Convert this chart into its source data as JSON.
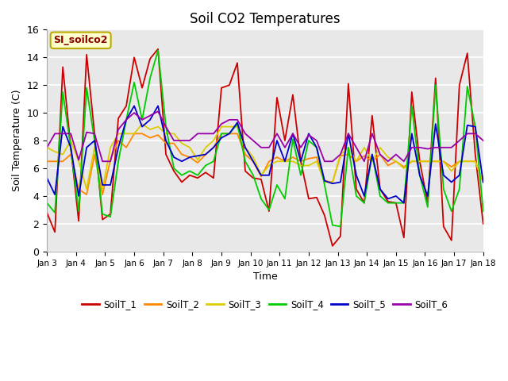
{
  "title": "Soil CO2 Temperatures",
  "xlabel": "Time",
  "ylabel": "Soil Temperature (C)",
  "ylim": [
    0,
    16
  ],
  "annotation": "SI_soilco2",
  "series_names": [
    "SoilT_1",
    "SoilT_2",
    "SoilT_3",
    "SoilT_4",
    "SoilT_5",
    "SoilT_6"
  ],
  "colors": [
    "#cc0000",
    "#ff8800",
    "#ddcc00",
    "#00cc00",
    "#0000cc",
    "#9900aa"
  ],
  "x_tick_labels": [
    "Jan 3",
    "Jan 4",
    "Jan 5",
    "Jan 6",
    "Jan 7",
    "Jan 8",
    "Jan 9",
    "Jan 10",
    "Jan 11",
    "Jan 12",
    "Jan 13",
    "Jan 14",
    "Jan 15",
    "Jan 16",
    "Jan 17",
    "Jan 18"
  ],
  "SoilT_1": [
    2.8,
    1.4,
    13.3,
    7.5,
    2.2,
    14.2,
    8.5,
    2.3,
    2.7,
    9.6,
    10.5,
    14.0,
    11.8,
    13.9,
    14.6,
    7.0,
    5.8,
    5.0,
    5.5,
    5.3,
    5.7,
    5.3,
    11.8,
    12.0,
    13.6,
    5.8,
    5.3,
    5.2,
    2.9,
    11.1,
    8.0,
    11.3,
    6.5,
    3.8,
    3.9,
    2.6,
    0.4,
    1.1,
    12.1,
    4.5,
    3.5,
    9.8,
    4.5,
    3.6,
    3.5,
    1.0,
    11.5,
    6.5,
    3.5,
    12.5,
    1.8,
    0.8,
    12.0,
    14.3,
    7.0,
    2.0
  ],
  "SoilT_2": [
    6.5,
    6.5,
    6.5,
    7.0,
    4.5,
    4.1,
    7.0,
    4.1,
    6.6,
    8.0,
    7.5,
    8.5,
    8.5,
    8.2,
    8.4,
    7.8,
    7.8,
    7.0,
    6.8,
    6.4,
    7.0,
    7.5,
    8.5,
    8.5,
    8.5,
    7.0,
    6.5,
    5.4,
    6.5,
    6.8,
    6.5,
    6.8,
    6.5,
    6.7,
    6.8,
    5.1,
    5.0,
    6.9,
    7.0,
    6.5,
    6.9,
    6.5,
    7.0,
    6.2,
    6.5,
    6.1,
    6.5,
    6.5,
    6.5,
    6.5,
    6.5,
    6.1,
    6.5,
    6.5,
    6.5,
    5.0
  ],
  "SoilT_3": [
    7.5,
    7.2,
    7.0,
    8.0,
    6.5,
    4.5,
    7.5,
    4.5,
    7.5,
    8.5,
    8.5,
    8.5,
    9.2,
    8.8,
    9.0,
    8.5,
    8.5,
    7.8,
    7.5,
    6.6,
    7.5,
    8.0,
    9.0,
    9.0,
    9.0,
    7.5,
    6.8,
    5.5,
    6.2,
    6.5,
    6.5,
    6.5,
    6.2,
    6.2,
    6.5,
    5.0,
    5.0,
    7.0,
    7.5,
    6.5,
    7.5,
    6.5,
    7.5,
    6.8,
    6.5,
    6.0,
    6.5,
    6.5,
    6.5,
    6.5,
    6.5,
    5.8,
    6.5,
    6.5,
    6.5,
    5.0
  ],
  "SoilT_4": [
    3.5,
    2.8,
    11.5,
    7.5,
    2.9,
    11.8,
    8.0,
    2.7,
    2.5,
    6.5,
    9.5,
    12.2,
    9.5,
    12.5,
    14.5,
    9.0,
    6.0,
    5.5,
    5.8,
    5.5,
    6.2,
    6.5,
    8.5,
    8.5,
    9.2,
    6.5,
    5.5,
    3.8,
    3.0,
    4.8,
    3.8,
    8.1,
    5.5,
    8.0,
    7.5,
    4.8,
    1.9,
    1.8,
    7.5,
    4.0,
    3.5,
    7.0,
    4.0,
    3.5,
    3.5,
    3.5,
    10.5,
    5.5,
    3.2,
    12.0,
    4.5,
    2.9,
    4.5,
    11.9,
    9.0,
    2.9
  ],
  "SoilT_5": [
    5.3,
    4.1,
    9.0,
    7.5,
    4.0,
    7.5,
    8.0,
    4.8,
    4.8,
    7.5,
    9.5,
    10.5,
    9.0,
    9.5,
    10.5,
    8.0,
    6.8,
    6.5,
    6.8,
    6.9,
    7.0,
    7.5,
    8.2,
    8.5,
    9.3,
    7.5,
    6.5,
    5.5,
    5.5,
    8.0,
    6.5,
    8.5,
    6.5,
    8.5,
    7.5,
    5.1,
    4.9,
    5.0,
    8.5,
    5.5,
    4.0,
    7.0,
    4.5,
    3.8,
    4.0,
    3.5,
    8.5,
    5.5,
    4.0,
    9.2,
    5.5,
    5.0,
    5.5,
    9.1,
    9.0,
    5.0
  ],
  "SoilT_6": [
    7.5,
    8.5,
    8.5,
    8.5,
    6.6,
    8.6,
    8.5,
    6.5,
    6.5,
    8.8,
    9.5,
    10.0,
    9.5,
    9.8,
    10.1,
    9.0,
    8.0,
    8.0,
    8.0,
    8.5,
    8.5,
    8.5,
    9.2,
    9.5,
    9.5,
    8.5,
    8.0,
    7.5,
    7.5,
    8.5,
    7.5,
    8.5,
    7.5,
    8.4,
    8.0,
    6.5,
    6.5,
    7.0,
    8.5,
    7.5,
    6.5,
    8.5,
    7.0,
    6.5,
    7.0,
    6.5,
    7.5,
    7.5,
    7.4,
    7.5,
    7.5,
    7.5,
    8.0,
    8.5,
    8.5,
    8.0
  ]
}
